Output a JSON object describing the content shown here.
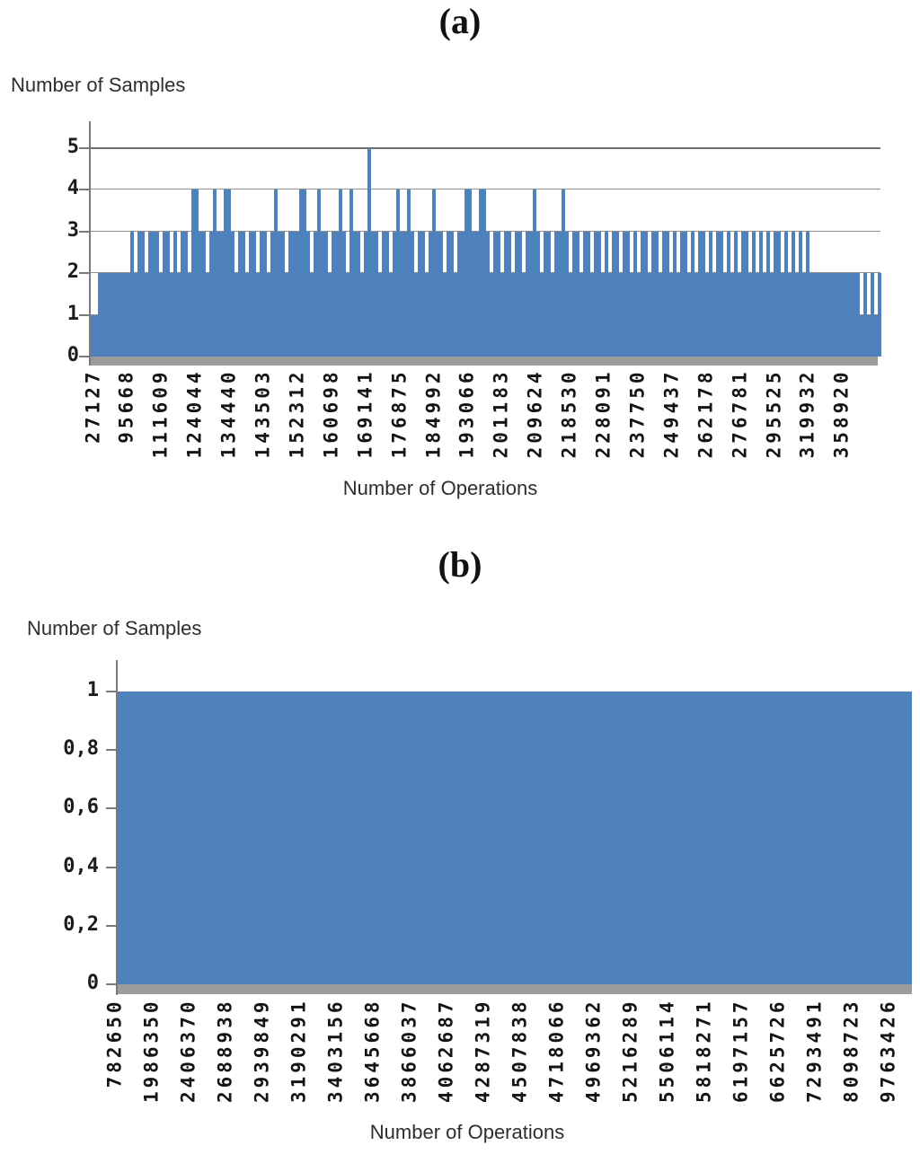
{
  "colors": {
    "bar_fill": "#4f81bd",
    "axis_line": "#7a7a7a",
    "gridline": "#909090",
    "gridline_top": "#6f6f6f",
    "baseline_band": "#9c9c9c",
    "text": "#2e2e2e"
  },
  "chart_data": [
    {
      "type": "bar",
      "panel_label": "(a)",
      "ylabel": "Number of Samples",
      "xlabel": "Number of Operations",
      "ylim": [
        0,
        5
      ],
      "y_ticks": [
        0,
        1,
        2,
        3,
        4,
        5
      ],
      "y_tick_labels": [
        "0",
        "1",
        "2",
        "3",
        "4",
        "5"
      ],
      "grid": "horizontal gridlines at integer levels, bars drawn over them",
      "legend": "none",
      "x_tick_labels": [
        "27127",
        "95668",
        "111609",
        "124044",
        "134440",
        "143503",
        "152312",
        "160698",
        "169141",
        "176875",
        "184992",
        "193066",
        "201183",
        "209624",
        "218530",
        "228091",
        "237750",
        "249437",
        "262178",
        "276781",
        "295525",
        "319932",
        "358920"
      ],
      "n_bars": 220,
      "bar_heights_note": "one digit per bar, left to right; join segments to get the full 220-bar height sequence (values 1-5); single peak of 5 aligns with label 169141",
      "bar_heights_compact": [
        "11",
        "222222222",
        "32332333233232332",
        "44332343344323323323323",
        "43323334432343323343243323",
        "5",
        "33233234334323323433233233",
        "443344",
        "32332332332334",
        "32332334",
        "3233233233",
        "2323323323",
        "2332332332",
        "3233232332",
        "3233232323",
        "3232323233",
        "23232323",
        "22222222222222",
        "121212"
      ]
    },
    {
      "type": "bar",
      "panel_label": "(b)",
      "ylabel": "Number of Samples",
      "xlabel": "Number of Operations",
      "ylim": [
        0,
        1
      ],
      "y_ticks": [
        0,
        0.2,
        0.4,
        0.6,
        0.8,
        1
      ],
      "y_tick_labels": [
        "0",
        "0,2",
        "0,4",
        "0,6",
        "0,8",
        "1"
      ],
      "grid": "none",
      "legend": "none",
      "x_tick_labels": [
        "782650",
        "1986350",
        "2406370",
        "2688938",
        "2939849",
        "3190291",
        "3403156",
        "3645668",
        "3866037",
        "4062687",
        "4287319",
        "4507838",
        "4718066",
        "4969362",
        "5216289",
        "5506114",
        "5818271",
        "6197157",
        "6625726",
        "7293491",
        "8098723",
        "9763426"
      ],
      "uniform_fill_value": 1,
      "values": [
        1,
        1,
        1,
        1,
        1,
        1,
        1,
        1,
        1,
        1,
        1,
        1,
        1,
        1,
        1,
        1,
        1,
        1,
        1,
        1,
        1,
        1
      ]
    }
  ]
}
